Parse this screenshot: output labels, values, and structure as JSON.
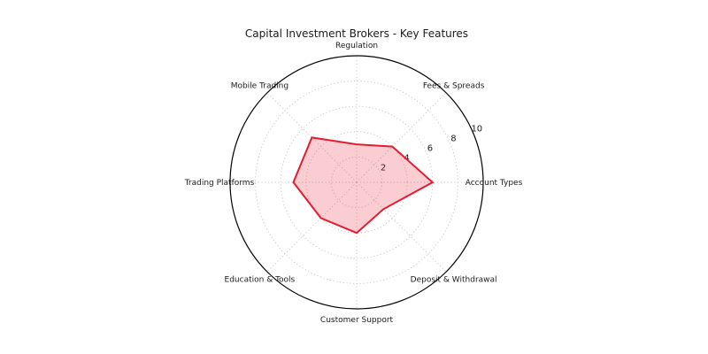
{
  "chart_data": {
    "type": "radar",
    "title": "Capital Investment Brokers - Key Features",
    "categories": [
      "Regulation",
      "Fees & Spreads",
      "Account Types",
      "Deposit & Withdrawal",
      "Customer Support",
      "Education & Tools",
      "Trading Platforms",
      "Mobile Trading"
    ],
    "values": [
      3,
      4,
      6,
      3,
      4,
      4,
      5,
      5
    ],
    "r_ticks": [
      2,
      4,
      6,
      8,
      10
    ],
    "r_max": 10,
    "start": "top",
    "direction": "clockwise",
    "rlabel_angle_deg": 22.5,
    "grid": true,
    "legend": "none",
    "colors": {
      "series_line": "#e51c30",
      "series_fill": "#e51c30",
      "series_fill_alpha": 0.22,
      "grid_line": "#c4c4c4",
      "outer_ring": "#000000",
      "text": "#1a1a1a",
      "background": "#ffffff"
    }
  }
}
